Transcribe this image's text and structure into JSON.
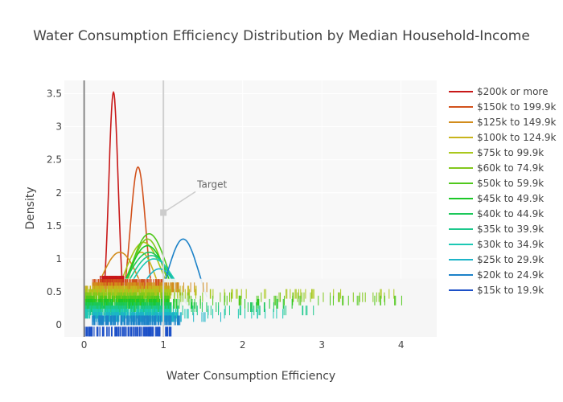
{
  "chart_data": {
    "type": "density",
    "title": "Water Consumption Efficiency Distribution by Median Household-Income",
    "xlabel": "Water Consumption Efficiency",
    "ylabel": "Density",
    "xlim": [
      -0.25,
      4.45
    ],
    "ylim": [
      -0.18,
      3.7
    ],
    "xticks": [
      0,
      1,
      2,
      3,
      4
    ],
    "xtick_labels": [
      "0",
      "1",
      "2",
      "3",
      "4"
    ],
    "yticks": [
      0,
      0.5,
      1,
      1.5,
      2,
      2.5,
      3,
      3.5
    ],
    "ytick_labels": [
      "0",
      "0.5",
      "1",
      "1.5",
      "2",
      "2.5",
      "3",
      "3.5"
    ],
    "legend_position": "right",
    "reference_lines": [
      {
        "x": 0,
        "color": "#888888"
      },
      {
        "x": 1,
        "color": "#d0d0d0"
      }
    ],
    "annotation": {
      "text": "Target",
      "x": 1.0,
      "y": 1.7
    },
    "series": [
      {
        "name": "$200k or more",
        "color": "#c81818",
        "peak_x": 0.37,
        "peak_y": 3.52,
        "sd": 0.06,
        "x_range": [
          0.22,
          0.52
        ],
        "rug_y": 0.67,
        "rug_range": [
          0.2,
          0.5
        ]
      },
      {
        "name": "$150k to 199.9k",
        "color": "#d2521c",
        "peak_x": 0.68,
        "peak_y": 2.39,
        "sd": 0.1,
        "x_range": [
          0.4,
          0.98
        ],
        "rug_y": 0.62,
        "rug_range": [
          0.1,
          1.0
        ]
      },
      {
        "name": "$125k to 149.9k",
        "color": "#d28c1c",
        "peak_x": 0.45,
        "peak_y": 1.1,
        "sd": 0.25,
        "x_range": [
          0.22,
          1.0
        ],
        "rug_y": 0.57,
        "rug_range": [
          0.1,
          1.6
        ]
      },
      {
        "name": "$100k to 124.9k",
        "color": "#c8b41c",
        "peak_x": 0.72,
        "peak_y": 1.1,
        "sd": 0.2,
        "x_range": [
          0.3,
          1.1
        ],
        "rug_y": 0.52,
        "rug_range": [
          0.0,
          1.6
        ]
      },
      {
        "name": "$75k to 99.9k",
        "color": "#aac81c",
        "peak_x": 0.75,
        "peak_y": 1.25,
        "sd": 0.25,
        "x_range": [
          0.3,
          1.1
        ],
        "rug_y": 0.47,
        "rug_range": [
          0.0,
          4.1
        ]
      },
      {
        "name": "$60k to 74.9k",
        "color": "#82c81c",
        "peak_x": 0.8,
        "peak_y": 1.3,
        "sd": 0.22,
        "x_range": [
          0.35,
          1.2
        ],
        "rug_y": 0.42,
        "rug_range": [
          0.0,
          3.8
        ]
      },
      {
        "name": "$50k to 59.9k",
        "color": "#50c81c",
        "peak_x": 0.82,
        "peak_y": 1.38,
        "sd": 0.24,
        "x_range": [
          0.35,
          1.25
        ],
        "rug_y": 0.37,
        "rug_range": [
          0.0,
          4.1
        ]
      },
      {
        "name": "$45k to 49.9k",
        "color": "#1cc828",
        "peak_x": 0.8,
        "peak_y": 1.2,
        "sd": 0.26,
        "x_range": [
          0.35,
          1.25
        ],
        "rug_y": 0.32,
        "rug_range": [
          0.0,
          2.8
        ]
      },
      {
        "name": "$40k to 44.9k",
        "color": "#1cc85a",
        "peak_x": 0.82,
        "peak_y": 1.1,
        "sd": 0.3,
        "x_range": [
          0.3,
          1.3
        ],
        "rug_y": 0.27,
        "rug_range": [
          0.0,
          2.4
        ]
      },
      {
        "name": "$35k to 39.9k",
        "color": "#1cc88c",
        "peak_x": 0.85,
        "peak_y": 1.05,
        "sd": 0.3,
        "x_range": [
          0.3,
          1.3
        ],
        "rug_y": 0.22,
        "rug_range": [
          0.0,
          3.0
        ]
      },
      {
        "name": "$30k to 34.9k",
        "color": "#1cc8b4",
        "peak_x": 0.88,
        "peak_y": 1.0,
        "sd": 0.3,
        "x_range": [
          0.3,
          1.3
        ],
        "rug_y": 0.17,
        "rug_range": [
          0.0,
          2.6
        ]
      },
      {
        "name": "$25k to 29.9k",
        "color": "#1cb4c8",
        "peak_x": 0.95,
        "peak_y": 0.85,
        "sd": 0.25,
        "x_range": [
          0.6,
          1.35
        ],
        "rug_y": 0.12,
        "rug_range": [
          0.1,
          1.8
        ]
      },
      {
        "name": "$20k to 24.9k",
        "color": "#1c82c8",
        "peak_x": 1.25,
        "peak_y": 1.3,
        "sd": 0.2,
        "x_range": [
          0.95,
          1.55
        ],
        "rug_y": 0.07,
        "rug_range": [
          0.1,
          1.3
        ]
      },
      {
        "name": "$15k to 19.9k",
        "color": "#1c50c8",
        "peak_x": 0.9,
        "peak_y": 0.3,
        "sd": 0.1,
        "x_range": [
          0.7,
          1.0
        ],
        "rug_y": -0.1,
        "rug_range": [
          0.0,
          1.1
        ]
      }
    ]
  }
}
